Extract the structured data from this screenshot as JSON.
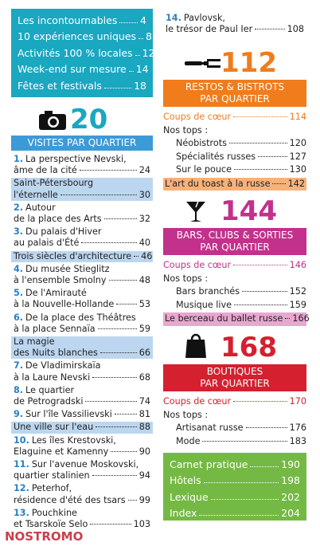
{
  "contents_box": {
    "entries": [
      {
        "label": "Les incontournables",
        "page": 4
      },
      {
        "label": "10 expériences uniques",
        "page": 8
      },
      {
        "label": "Activités 100 % locales",
        "page": 12
      },
      {
        "label": "Week-end sur mesure",
        "page": 14
      },
      {
        "label": "Fêtes et festivals",
        "page": 18
      }
    ]
  },
  "visites": {
    "number": 20,
    "title": [
      "VISITES PAR QUARTIER"
    ],
    "entries": [
      {
        "num": "1.",
        "lines": [
          "La perspective Nevski,",
          "âme de la cité"
        ],
        "page": 24
      },
      {
        "lines": [
          "Saint-Pétersbourg",
          "l'éternelle"
        ],
        "page": 30,
        "feature": true
      },
      {
        "num": "2.",
        "lines": [
          "Autour",
          "de la place des Arts"
        ],
        "page": 32
      },
      {
        "num": "3.",
        "lines": [
          "Du palais d'Hiver",
          "au palais d'Été"
        ],
        "page": 40
      },
      {
        "lines": [
          "Trois siècles d'architecture"
        ],
        "page": 46,
        "feature": true
      },
      {
        "num": "4.",
        "lines": [
          "Du musée Stieglitz",
          "à l'ensemble Smolny"
        ],
        "page": 48
      },
      {
        "num": "5.",
        "lines": [
          "De l'Amirauté",
          "à la Nouvelle-Hollande"
        ],
        "page": 53
      },
      {
        "num": "6.",
        "lines": [
          "De la place des Théâtres",
          "à la place Sennaïa"
        ],
        "page": 59
      },
      {
        "lines": [
          "La magie",
          "des Nuits blanches"
        ],
        "page": 66,
        "feature": true
      },
      {
        "num": "7.",
        "lines": [
          "De Vladimirskaïa",
          "à la Laure Nevski"
        ],
        "page": 68
      },
      {
        "num": "8.",
        "lines": [
          "Le quartier",
          "de Petrogradski"
        ],
        "page": 74
      },
      {
        "num": "9.",
        "lines": [
          "Sur l'île Vassilievski"
        ],
        "page": 81
      },
      {
        "lines": [
          "Une ville sur l'eau"
        ],
        "page": 88,
        "feature": true
      },
      {
        "num": "10.",
        "lines": [
          "Les îles Krestovski,",
          "Elaguine et Kamenny"
        ],
        "page": 90
      },
      {
        "num": "11.",
        "lines": [
          "Sur l'avenue Moskovski,",
          "quartier stalinien"
        ],
        "page": 94
      },
      {
        "num": "12.",
        "lines": [
          "Peterhof,",
          "résidence d'été des tsars"
        ],
        "page": 99
      },
      {
        "num": "13.",
        "lines": [
          "Pouchkine",
          "et Tsarskoïe Selo"
        ],
        "page": 103
      },
      {
        "num": "14.",
        "lines": [
          "Pavlovsk,",
          "le trésor de Paul Ier"
        ],
        "page": 108
      }
    ]
  },
  "sections": [
    {
      "number": 112,
      "title": [
        "RESTOS & BISTROTS",
        "PAR QUARTIER"
      ],
      "coups": {
        "label": "Coups de cœur",
        "page": 114
      },
      "tops_label": "Nos tops :",
      "tops": [
        {
          "label": "Néobistrots",
          "page": 120
        },
        {
          "label": "Spécialités russes",
          "page": 127
        },
        {
          "label": "Sur le pouce",
          "page": 130
        }
      ],
      "feature": {
        "label": "L'art du toast à la russe",
        "page": 142
      }
    },
    {
      "number": 144,
      "title": [
        "BARS, CLUBS & SORTIES",
        "PAR QUARTIER"
      ],
      "coups": {
        "label": "Coups de cœur",
        "page": 146
      },
      "tops_label": "Nos tops :",
      "tops": [
        {
          "label": "Bars branchés",
          "page": 152
        },
        {
          "label": "Musique live",
          "page": 159
        }
      ],
      "feature": {
        "label": "Le berceau du ballet russe",
        "page": 166
      }
    },
    {
      "number": 168,
      "title": [
        "BOUTIQUES",
        "PAR QUARTIER"
      ],
      "coups": {
        "label": "Coups de cœur",
        "page": 170
      },
      "tops_label": "Nos tops :",
      "tops": [
        {
          "label": "Artisanat russe",
          "page": 176
        },
        {
          "label": "Mode",
          "page": 183
        }
      ]
    }
  ],
  "practical_box": {
    "entries": [
      {
        "label": "Carnet pratique",
        "page": 190
      },
      {
        "label": "Hôtels",
        "page": 198
      },
      {
        "label": "Lexique",
        "page": 202
      },
      {
        "label": "Index",
        "page": 204
      }
    ]
  },
  "watermark": "NOSTROMO"
}
